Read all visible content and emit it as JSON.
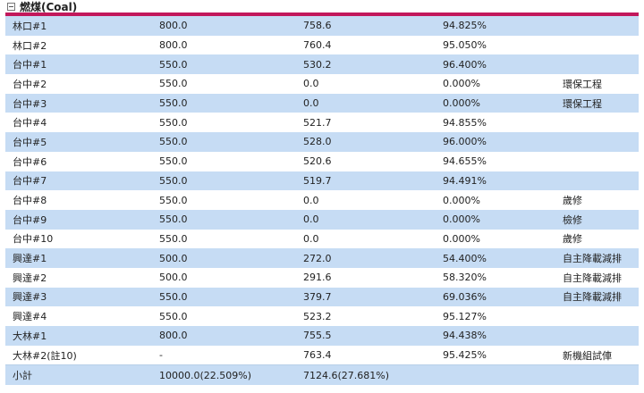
{
  "section": {
    "title": "燃煤(Coal)",
    "accent_color": "#c2185b",
    "row_alt_color": "#c6dcf4"
  },
  "rows": [
    {
      "unit": "林口#1",
      "capacity": "800.0",
      "output": "758.6",
      "ratio": "94.825%",
      "note": ""
    },
    {
      "unit": "林口#2",
      "capacity": "800.0",
      "output": "760.4",
      "ratio": "95.050%",
      "note": ""
    },
    {
      "unit": "台中#1",
      "capacity": "550.0",
      "output": "530.2",
      "ratio": "96.400%",
      "note": ""
    },
    {
      "unit": "台中#2",
      "capacity": "550.0",
      "output": "0.0",
      "ratio": "0.000%",
      "note": "環保工程"
    },
    {
      "unit": "台中#3",
      "capacity": "550.0",
      "output": "0.0",
      "ratio": "0.000%",
      "note": "環保工程"
    },
    {
      "unit": "台中#4",
      "capacity": "550.0",
      "output": "521.7",
      "ratio": "94.855%",
      "note": ""
    },
    {
      "unit": "台中#5",
      "capacity": "550.0",
      "output": "528.0",
      "ratio": "96.000%",
      "note": ""
    },
    {
      "unit": "台中#6",
      "capacity": "550.0",
      "output": "520.6",
      "ratio": "94.655%",
      "note": ""
    },
    {
      "unit": "台中#7",
      "capacity": "550.0",
      "output": "519.7",
      "ratio": "94.491%",
      "note": ""
    },
    {
      "unit": "台中#8",
      "capacity": "550.0",
      "output": "0.0",
      "ratio": "0.000%",
      "note": "歲修"
    },
    {
      "unit": "台中#9",
      "capacity": "550.0",
      "output": "0.0",
      "ratio": "0.000%",
      "note": "檢修"
    },
    {
      "unit": "台中#10",
      "capacity": "550.0",
      "output": "0.0",
      "ratio": "0.000%",
      "note": "歲修"
    },
    {
      "unit": "興達#1",
      "capacity": "500.0",
      "output": "272.0",
      "ratio": "54.400%",
      "note": "自主降載減排"
    },
    {
      "unit": "興達#2",
      "capacity": "500.0",
      "output": "291.6",
      "ratio": "58.320%",
      "note": "自主降載減排"
    },
    {
      "unit": "興達#3",
      "capacity": "550.0",
      "output": "379.7",
      "ratio": "69.036%",
      "note": "自主降載減排"
    },
    {
      "unit": "興達#4",
      "capacity": "550.0",
      "output": "523.2",
      "ratio": "95.127%",
      "note": ""
    },
    {
      "unit": "大林#1",
      "capacity": "800.0",
      "output": "755.5",
      "ratio": "94.438%",
      "note": ""
    },
    {
      "unit": "大林#2(註10)",
      "capacity": "-",
      "output": "763.4",
      "ratio": "95.425%",
      "note": "新機組試俥"
    }
  ],
  "total": {
    "label": "小計",
    "capacity": "10000.0(22.509%)",
    "output": "7124.6(27.681%)",
    "ratio": "",
    "note": ""
  }
}
